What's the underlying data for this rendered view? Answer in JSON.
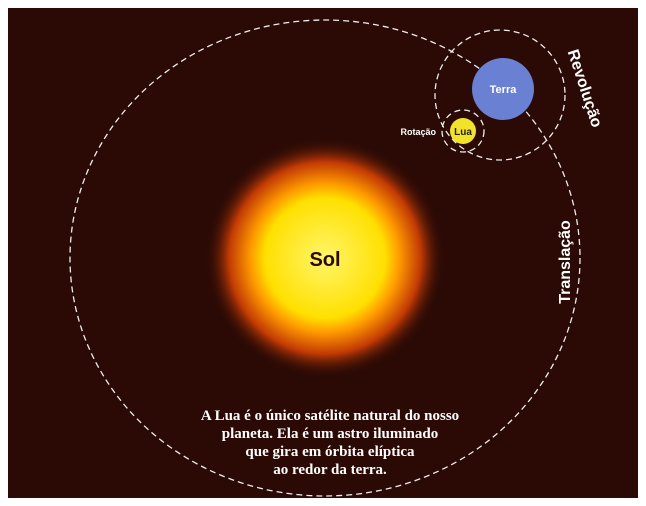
{
  "labels": {
    "sun": "Sol",
    "earth": "Terra",
    "moon": "Lua",
    "rotation": "Rotação",
    "revolution": "Revolução",
    "translation": "Translação"
  },
  "caption": [
    "A Lua é o único satélite natural do nosso",
    "planeta. Ela é um astro iluminado",
    "que gira em órbita elíptica",
    "ao redor da terra."
  ]
}
